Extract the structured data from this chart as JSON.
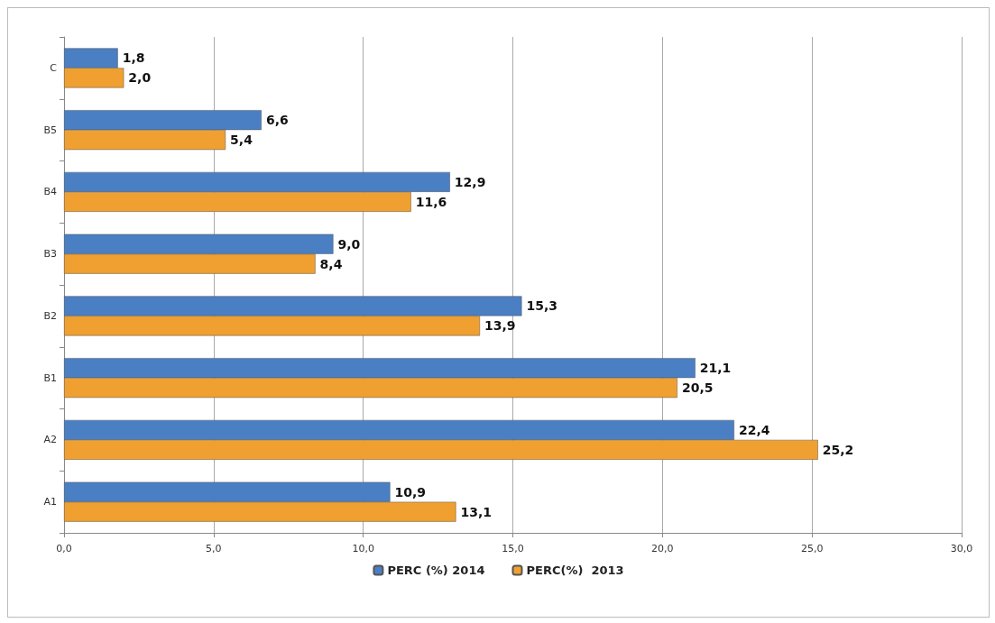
{
  "chart_data": {
    "type": "bar",
    "orientation": "horizontal",
    "categories": [
      "C",
      "B5",
      "B4",
      "B3",
      "B2",
      "B1",
      "A2",
      "A1"
    ],
    "series": [
      {
        "name": "PERC (%) 2014",
        "color": "#4a7fc4",
        "values": [
          1.8,
          6.6,
          12.9,
          9.0,
          15.3,
          21.1,
          22.4,
          10.9
        ],
        "value_labels": [
          "1,8",
          "6,6",
          "12,9",
          "9,0",
          "15,3",
          "21,1",
          "22,4",
          "10,9"
        ]
      },
      {
        "name": "PERC(%)  2013",
        "color": "#f0a030",
        "values": [
          2.0,
          5.4,
          11.6,
          8.4,
          13.9,
          20.5,
          25.2,
          13.1
        ],
        "value_labels": [
          "2,0",
          "5,4",
          "11,6",
          "8,4",
          "13,9",
          "20,5",
          "25,2",
          "13,1"
        ]
      }
    ],
    "xlim": [
      0,
      30
    ],
    "xticks": [
      {
        "value": 0,
        "label": "0,0"
      },
      {
        "value": 5,
        "label": "5,0"
      },
      {
        "value": 10,
        "label": "10,0"
      },
      {
        "value": 15,
        "label": "15,0"
      },
      {
        "value": 20,
        "label": "20,0"
      },
      {
        "value": 25,
        "label": "25,0"
      },
      {
        "value": 30,
        "label": "30,0"
      }
    ],
    "grid": "x",
    "legend": "bottom"
  }
}
